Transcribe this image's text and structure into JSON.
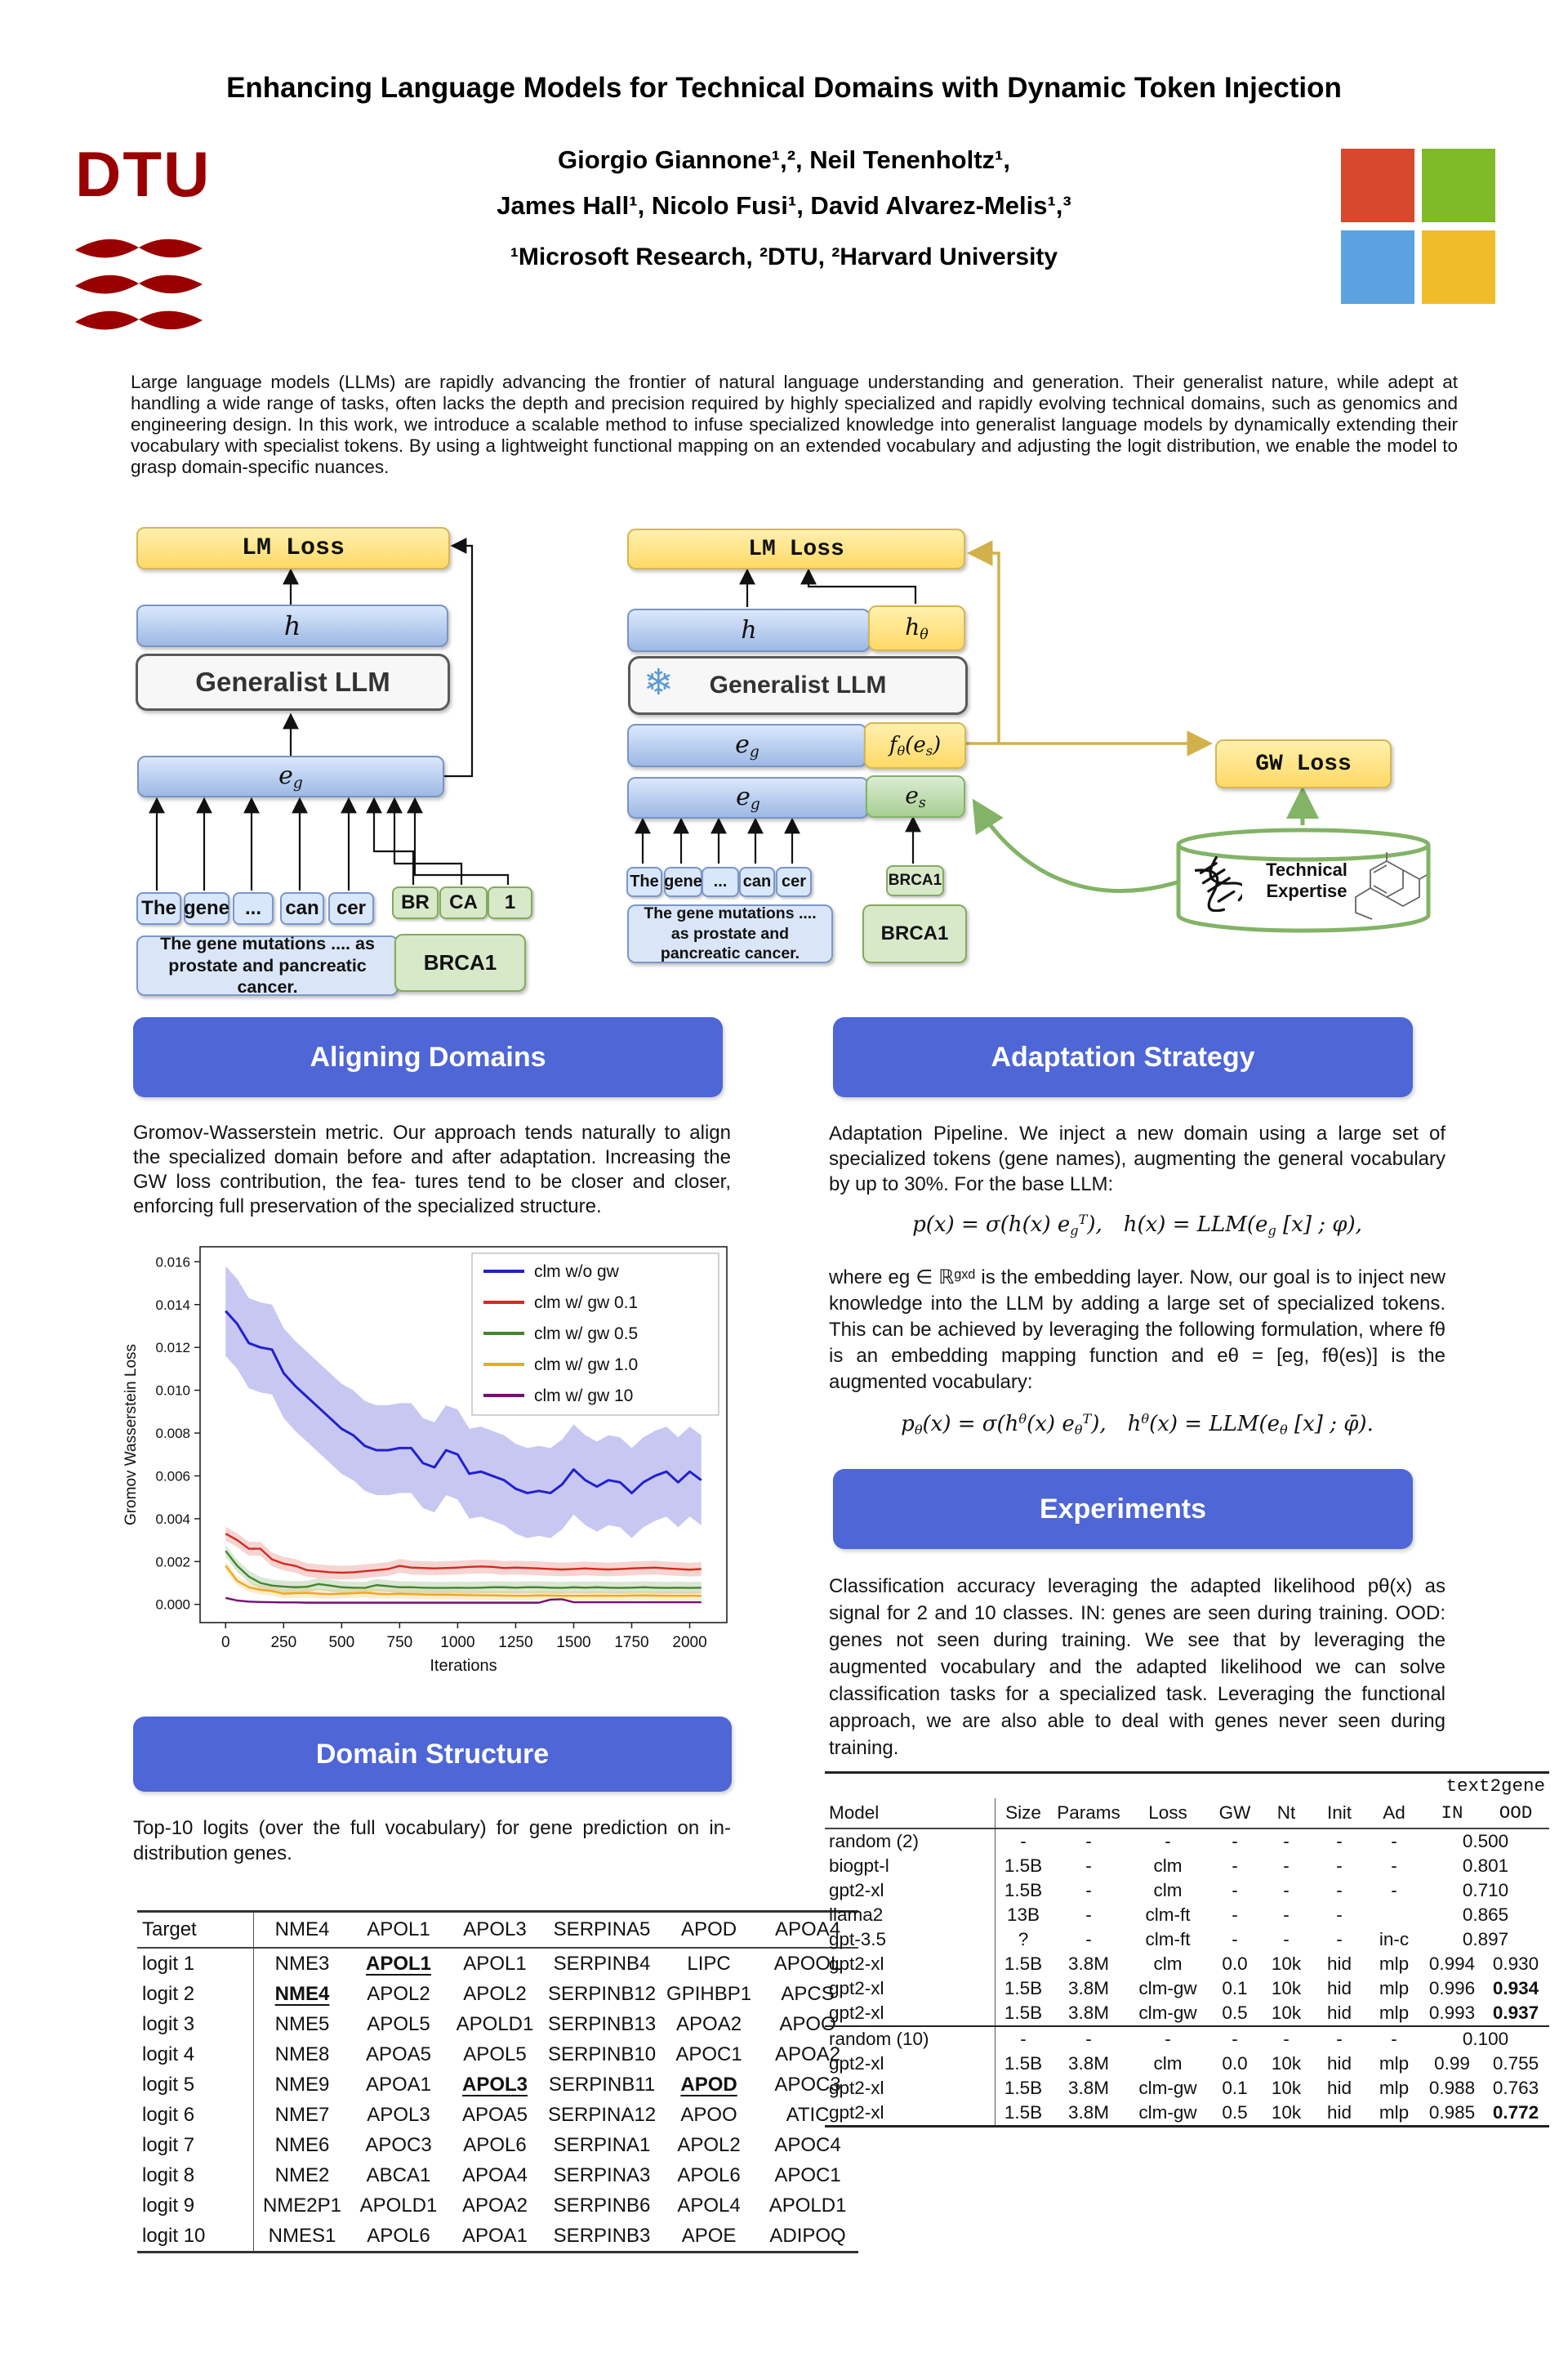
{
  "header": {
    "title": "Enhancing Language Models for Technical Domains with Dynamic Token Injection",
    "authors_line1": "Giorgio Giannone¹,², Neil Tenenholtz¹,",
    "authors_line2": "James Hall¹, Nicolo Fusi¹, David Alvarez-Melis¹,³",
    "affiliations": "¹Microsoft Research, ²DTU, ²Harvard University",
    "dtu_logo": "DTU",
    "ms_colors": [
      "#d6492c",
      "#7fba28",
      "#5ba2e0",
      "#f0bc2a"
    ]
  },
  "abstract": "Large language models (LLMs) are rapidly advancing the frontier of natural language understanding and generation. Their generalist nature, while adept at handling a wide range of tasks, often lacks the depth and precision required by highly specialized and rapidly evolving technical domains, such as genomics and engineering design. In this work, we introduce a scalable method to infuse specialized knowledge into generalist language models by dynamically extending their vocabulary with specialist tokens. By using a lightweight functional mapping on an extended vocabulary and adjusting the logit distribution, we enable the model to grasp domain-specific nuances.",
  "figure": {
    "left": {
      "lm_loss": "LM Loss",
      "h": "h",
      "llm": "Generalist LLM",
      "eg_base": "e",
      "eg_sub": "g",
      "tokens": [
        "The",
        "gene",
        "...",
        "can",
        "cer"
      ],
      "gene_tokens": [
        "BR",
        "CA",
        "1"
      ],
      "sentence": "The gene mutations .... as prostate and pancreatic cancer.",
      "gene_box": "BRCA1"
    },
    "right": {
      "lm_loss": "LM Loss",
      "h": "h",
      "h_theta_base": "h",
      "h_theta_sub": "θ",
      "llm": "Generalist LLM",
      "snowflake": "❄",
      "eg_base": "e",
      "eg_sub": "g",
      "f_seg1": "f",
      "f_sub1": "θ",
      "f_seg2": "(e",
      "f_sub2": "s",
      "f_seg3": ")",
      "es_base": "e",
      "es_sub": "s",
      "gw_loss": "GW Loss",
      "tokens": [
        "The",
        "gene",
        "...",
        "can",
        "cer"
      ],
      "gene_token": "BRCA1",
      "sentence": "The gene mutations .... as prostate and pancreatic cancer.",
      "gene_box": "BRCA1",
      "expertise_line1": "Technical",
      "expertise_line2": "Expertise"
    }
  },
  "sections": {
    "aligning": {
      "title": "Aligning Domains",
      "body": "Gromov-Wasserstein metric.  Our approach tends naturally to align the specialized domain before and after adaptation.  Increasing the GW loss contribution, the fea- tures tend to be closer and closer, enforcing full preservation of the specialized structure."
    },
    "adaptation": {
      "title": "Adaptation Strategy",
      "body1": "Adaptation Pipeline.  We inject a new domain using a large set of specialized tokens (gene names), augmenting the general vocabulary by up to 30%.  For the base LLM:",
      "formula1": {
        "seg1": "p(x) = σ(h(x) e",
        "sub1": "g",
        "sup1": "T",
        "seg2": "),",
        "seg3": "h(x) = LLM(e",
        "sub2": "g",
        "seg4": " [x] ; φ),"
      },
      "body2": "where eg ∈ ℝᵍˣᵈ is the embedding layer.  Now, our goal is to inject new knowledge into the LLM by adding a large set of specialized tokens.  This can be achieved by leveraging the following formulation, where fθ is an embedding mapping function and eθ = [eg,  fθ(es)] is the augmented vocabulary:",
      "formula2": {
        "seg1": "p",
        "sub1": "θ",
        "seg2": "(x) = σ(h",
        "sup1": "θ",
        "seg3": "(x) e",
        "sub2": "θ",
        "sup2": "T",
        "seg4": "),",
        "seg5": "h",
        "sup3": "θ",
        "seg6": "(x) = LLM(e",
        "sub3": "θ",
        "seg7": " [x] ;  φ̄)."
      }
    },
    "experiments": {
      "title": "Experiments",
      "body": "Classification accuracy leveraging the adapted likelihood pθ(x) as signal for 2 and 10 classes.  IN: genes are seen during training.  OOD: genes not seen during training.  We see that by leveraging the augmented vocabulary and the adapted likelihood we can solve classification tasks for a specialized task.  Leveraging the functional approach, we are also able to deal with genes never seen during training."
    },
    "domain": {
      "title": "Domain Structure",
      "caption": "Top-10 logits (over the full vocabulary) for gene prediction on in-distribution genes."
    }
  },
  "chart_data": {
    "type": "line",
    "title": "",
    "xlabel": "Iterations",
    "ylabel": "Gromov Wasserstein Loss",
    "xlim": [
      -110,
      2160
    ],
    "ylim": [
      -0.00085,
      0.0167
    ],
    "xticks": [
      0,
      250,
      500,
      750,
      1000,
      1250,
      1500,
      1750,
      2000
    ],
    "yticks": [
      0.0,
      0.002,
      0.004,
      0.006,
      0.008,
      0.01,
      0.012,
      0.014,
      0.016
    ],
    "grid": false,
    "legend_position": "upper right",
    "x_step": 50,
    "series": [
      {
        "name": "clm w/o gw",
        "color": "#2121cc",
        "band": 0.0021,
        "y": [
          0.0137,
          0.0131,
          0.0122,
          0.012,
          0.0119,
          0.0108,
          0.0102,
          0.0097,
          0.0092,
          0.0087,
          0.0082,
          0.0079,
          0.0074,
          0.0072,
          0.0072,
          0.0073,
          0.0073,
          0.0066,
          0.0064,
          0.0072,
          0.007,
          0.0061,
          0.0062,
          0.006,
          0.0058,
          0.0054,
          0.0052,
          0.0053,
          0.0052,
          0.0056,
          0.0063,
          0.0058,
          0.0055,
          0.0058,
          0.0057,
          0.0052,
          0.0057,
          0.006,
          0.0062,
          0.0057,
          0.0062,
          0.0058
        ]
      },
      {
        "name": "clm w/ gw 0.1",
        "color": "#d42a20",
        "band": 0.00032,
        "y": [
          0.0033,
          0.003,
          0.0026,
          0.0026,
          0.0021,
          0.0019,
          0.0018,
          0.0016,
          0.00155,
          0.0015,
          0.00148,
          0.0015,
          0.00155,
          0.0016,
          0.00165,
          0.0018,
          0.00172,
          0.0017,
          0.00168,
          0.0017,
          0.00172,
          0.00175,
          0.00177,
          0.00175,
          0.0017,
          0.00172,
          0.0017,
          0.00168,
          0.00165,
          0.00163,
          0.00165,
          0.00168,
          0.00165,
          0.00163,
          0.00165,
          0.00168,
          0.0017,
          0.00172,
          0.00168,
          0.00165,
          0.00162,
          0.00165
        ]
      },
      {
        "name": "clm w/ gw 0.5",
        "color": "#44852c",
        "band": 0.00028,
        "y": [
          0.0025,
          0.0018,
          0.0013,
          0.001,
          0.00088,
          0.00083,
          0.0008,
          0.00082,
          0.00095,
          0.00088,
          0.0008,
          0.00078,
          0.00077,
          0.0009,
          0.00085,
          0.0008,
          0.0008,
          0.00078,
          0.00077,
          0.00077,
          0.00078,
          0.00077,
          0.00078,
          0.0008,
          0.0008,
          0.00078,
          0.0008,
          0.0008,
          0.00078,
          0.00077,
          0.0008,
          0.00078,
          0.0008,
          0.00078,
          0.00077,
          0.00078,
          0.0008,
          0.00078,
          0.00077,
          0.00078,
          0.00077,
          0.00078
        ]
      },
      {
        "name": "clm w/ gw 1.0",
        "color": "#f2a71b",
        "band": 0.00022,
        "y": [
          0.0018,
          0.0011,
          0.0008,
          0.00068,
          0.00062,
          0.0005,
          0.00052,
          0.00054,
          0.0005,
          0.00048,
          0.0005,
          0.00052,
          0.00055,
          0.0005,
          0.00048,
          0.0005,
          0.00048,
          0.00046,
          0.00045,
          0.00045,
          0.00044,
          0.00043,
          0.00042,
          0.00042,
          0.00041,
          0.0004,
          0.0004,
          0.00042,
          0.00041,
          0.0004,
          0.0004,
          0.0004,
          0.00041,
          0.0004,
          0.0004,
          0.00041,
          0.00042,
          0.00041,
          0.0004,
          0.0004,
          0.0004,
          0.0004
        ]
      },
      {
        "name": "clm w/ gw 10",
        "color": "#750f75",
        "band": 4e-05,
        "y": [
          0.0003,
          0.00018,
          0.00013,
          0.00011,
          0.0001,
          9e-05,
          9e-05,
          8e-05,
          8e-05,
          8e-05,
          8e-05,
          8e-05,
          8e-05,
          8e-05,
          8e-05,
          8e-05,
          8e-05,
          8e-05,
          8e-05,
          8e-05,
          8e-05,
          8e-05,
          8e-05,
          8e-05,
          8e-05,
          8e-05,
          8e-05,
          8e-05,
          0.00022,
          0.00024,
          0.0001,
          0.0001,
          0.0001,
          0.0001,
          0.0001,
          0.0001,
          0.0001,
          0.0001,
          0.0001,
          0.0001,
          0.0001,
          0.0001
        ]
      }
    ]
  },
  "logits_table": {
    "headers": [
      "Target",
      "NME4",
      "APOL1",
      "APOL3",
      "SERPINA5",
      "APOD",
      "APOA4"
    ],
    "row_labels": [
      "logit 1",
      "logit 2",
      "logit 3",
      "logit 4",
      "logit 5",
      "logit 6",
      "logit 7",
      "logit 8",
      "logit 9",
      "logit 10"
    ],
    "rows": [
      [
        "NME3",
        "APOL1",
        "APOL1",
        "SERPINB4",
        "LIPC",
        "APOOL"
      ],
      [
        "NME4",
        "APOL2",
        "APOL2",
        "SERPINB12",
        "GPIHBP1",
        "APCS"
      ],
      [
        "NME5",
        "APOL5",
        "APOLD1",
        "SERPINB13",
        "APOA2",
        "APOO"
      ],
      [
        "NME8",
        "APOA5",
        "APOL5",
        "SERPINB10",
        "APOC1",
        "APOA2"
      ],
      [
        "NME9",
        "APOA1",
        "APOL3",
        "SERPINB11",
        "APOD",
        "APOC3"
      ],
      [
        "NME7",
        "APOL3",
        "APOA5",
        "SERPINA12",
        "APOO",
        "ATIC"
      ],
      [
        "NME6",
        "APOC3",
        "APOL6",
        "SERPINA1",
        "APOL2",
        "APOC4"
      ],
      [
        "NME2",
        "ABCA1",
        "APOA4",
        "SERPINA3",
        "APOL6",
        "APOC1"
      ],
      [
        "NME2P1",
        "APOLD1",
        "APOA2",
        "SERPINB6",
        "APOL4",
        "APOLD1"
      ],
      [
        "NMES1",
        "APOL6",
        "APOA1",
        "SERPINB3",
        "APOE",
        "ADIPOQ"
      ]
    ],
    "highlights": [
      [
        0,
        1
      ],
      [
        1,
        0
      ],
      [
        4,
        2
      ],
      [
        4,
        4
      ]
    ]
  },
  "results_table": {
    "group_header": "text2gene",
    "headers": [
      "Model",
      "Size",
      "Params",
      "Loss",
      "GW",
      "Nt",
      "Init",
      "Ad",
      "IN",
      "OOD"
    ],
    "rows": [
      {
        "cells": [
          "random (2)",
          "-",
          "-",
          "-",
          "-",
          "-",
          "-",
          "-"
        ],
        "single": "0.500"
      },
      {
        "cells": [
          "biogpt-l",
          "1.5B",
          "-",
          "clm",
          "-",
          "-",
          "-",
          "-"
        ],
        "single": "0.801"
      },
      {
        "cells": [
          "gpt2-xl",
          "1.5B",
          "-",
          "clm",
          "-",
          "-",
          "-",
          "-"
        ],
        "single": "0.710"
      },
      {
        "cells": [
          "llama2",
          "13B",
          "-",
          "clm-ft",
          "-",
          "-",
          "-",
          ""
        ],
        "single": "0.865"
      },
      {
        "cells": [
          "gpt-3.5",
          "?",
          "-",
          "clm-ft",
          "-",
          "-",
          "-",
          "in-c"
        ],
        "single": "0.897"
      },
      {
        "cells": [
          "gpt2-xl",
          "1.5B",
          "3.8M",
          "clm",
          "0.0",
          "10k",
          "hid",
          "mlp"
        ],
        "in": "0.994",
        "ood": "0.930"
      },
      {
        "cells": [
          "gpt2-xl",
          "1.5B",
          "3.8M",
          "clm-gw",
          "0.1",
          "10k",
          "hid",
          "mlp"
        ],
        "in": "0.996",
        "ood": "0.934",
        "ood_bold": true
      },
      {
        "cells": [
          "gpt2-xl",
          "1.5B",
          "3.8M",
          "clm-gw",
          "0.5",
          "10k",
          "hid",
          "mlp"
        ],
        "in": "0.993",
        "ood": "0.937",
        "ood_bold": true
      },
      {
        "cells": [
          "random (10)",
          "-",
          "-",
          "-",
          "-",
          "-",
          "-",
          "-"
        ],
        "single": "0.100",
        "sep": true
      },
      {
        "cells": [
          "gpt2-xl",
          "1.5B",
          "3.8M",
          "clm",
          "0.0",
          "10k",
          "hid",
          "mlp"
        ],
        "in": "0.99",
        "ood": "0.755"
      },
      {
        "cells": [
          "gpt2-xl",
          "1.5B",
          "3.8M",
          "clm-gw",
          "0.1",
          "10k",
          "hid",
          "mlp"
        ],
        "in": "0.988",
        "ood": "0.763"
      },
      {
        "cells": [
          "gpt2-xl",
          "1.5B",
          "3.8M",
          "clm-gw",
          "0.5",
          "10k",
          "hid",
          "mlp"
        ],
        "in": "0.985",
        "ood": "0.772",
        "ood_bold": true
      }
    ]
  }
}
